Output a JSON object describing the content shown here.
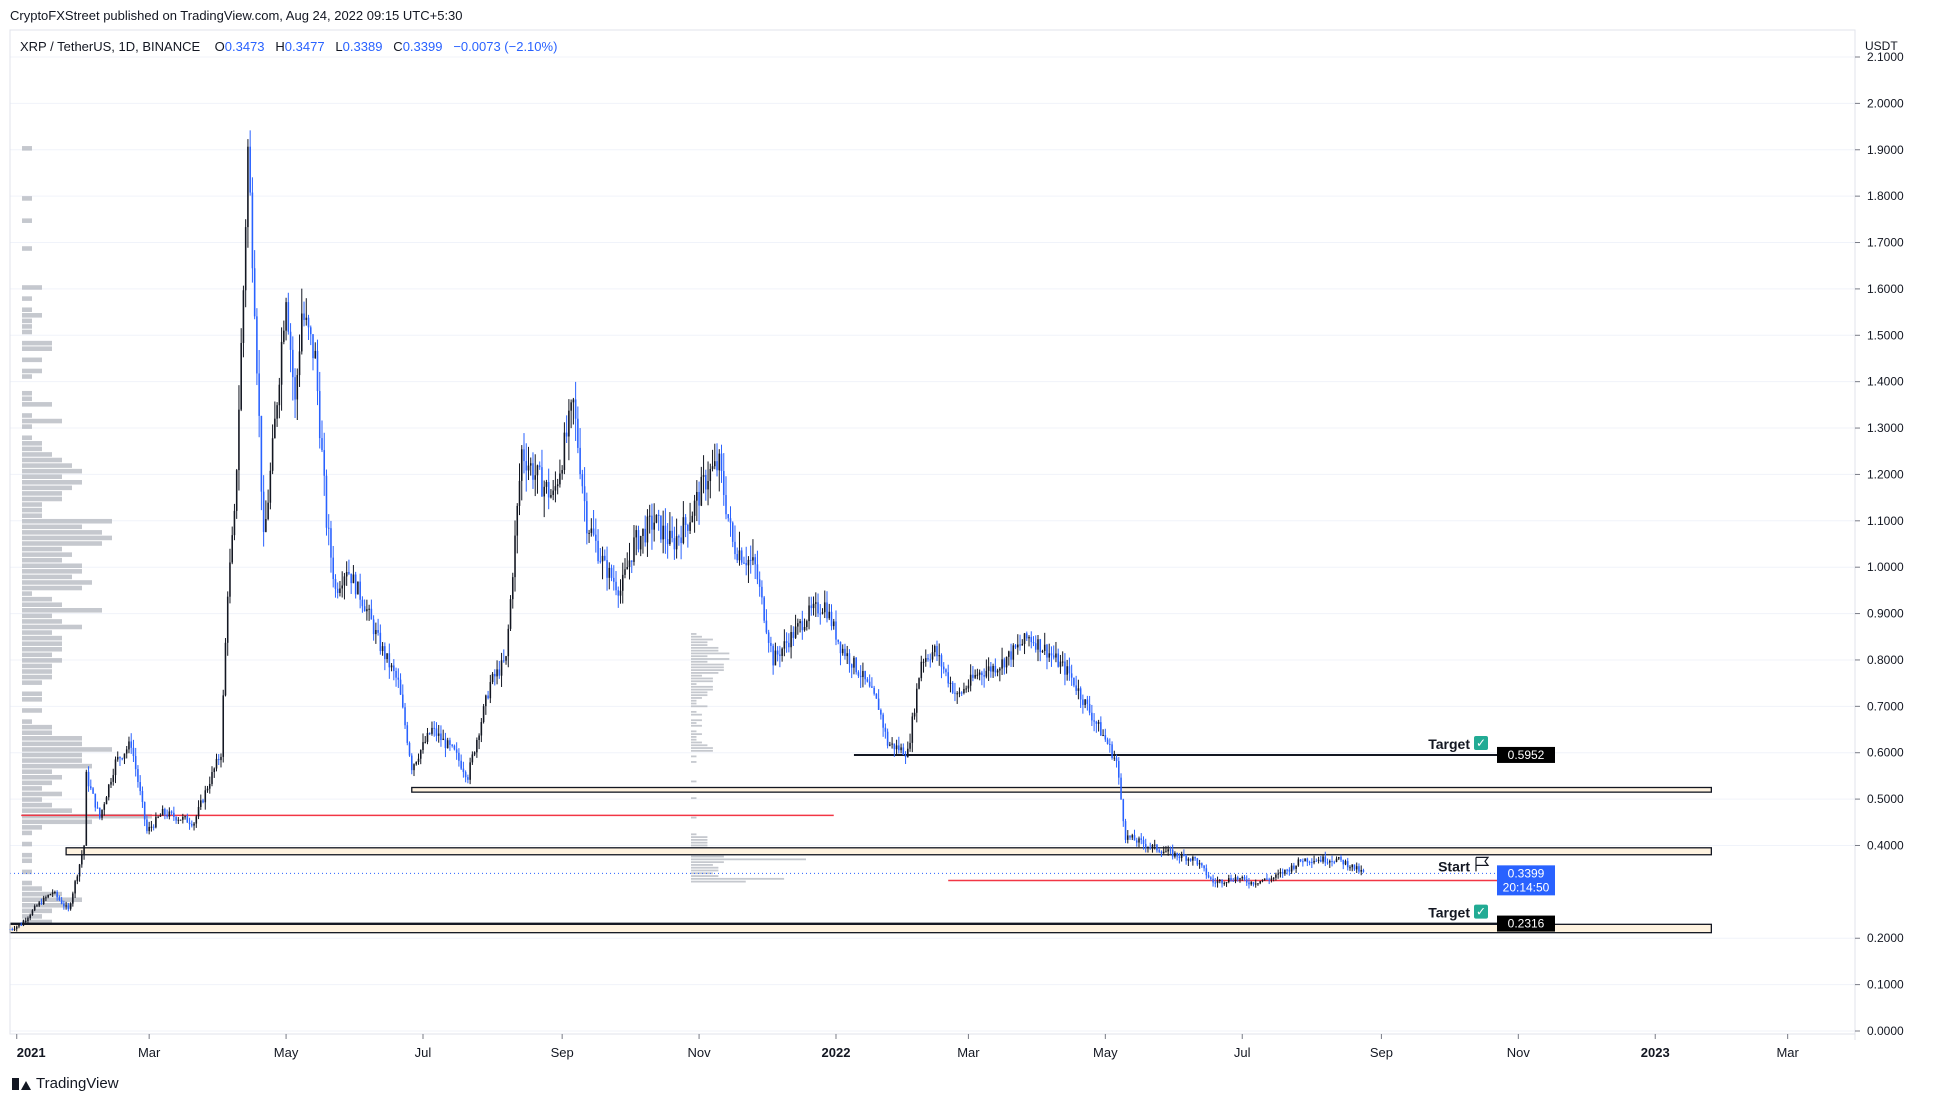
{
  "header": {
    "published_by": "CryptoFXStreet published on TradingView.com, Aug 24, 2022 09:15 UTC+5:30"
  },
  "symbol": {
    "name": "XRP / TetherUS, 1D, BINANCE",
    "open_label": "O",
    "open": "0.3473",
    "high_label": "H",
    "high": "0.3477",
    "low_label": "L",
    "low": "0.3389",
    "close_label": "C",
    "close": "0.3399",
    "change": "−0.0073 (−2.10%)"
  },
  "brand": {
    "label": "TradingView"
  },
  "chart_data": {
    "type": "candlestick",
    "price_axis_unit": "USDT",
    "ylim": [
      0.0,
      2.1
    ],
    "y_ticks": [
      "2.1000",
      "2.0000",
      "1.9000",
      "1.8000",
      "1.7000",
      "1.6000",
      "1.5000",
      "1.4000",
      "1.3000",
      "1.2000",
      "1.1000",
      "1.0000",
      "0.9000",
      "0.8000",
      "0.7000",
      "0.6000",
      "0.5000",
      "0.4000",
      "0.2000",
      "0.1000",
      "0.0000"
    ],
    "x_ticks": [
      "2021",
      "Mar",
      "May",
      "Jul",
      "Sep",
      "Nov",
      "2022",
      "Mar",
      "May",
      "Jul",
      "Sep",
      "Nov",
      "2023",
      "Mar"
    ],
    "x_tick_dates": [
      "2021-01-01",
      "2021-03-01",
      "2021-05-01",
      "2021-07-01",
      "2021-09-01",
      "2021-11-01",
      "2022-01-01",
      "2022-03-01",
      "2022-05-01",
      "2022-07-01",
      "2022-09-01",
      "2022-11-01",
      "2023-01-01",
      "2023-03-01"
    ],
    "x_range": [
      "2020-12-29",
      "2023-03-31"
    ],
    "price_path": [
      [
        "2020-12-29",
        0.22
      ],
      [
        "2021-01-03",
        0.23
      ],
      [
        "2021-01-10",
        0.27
      ],
      [
        "2021-01-17",
        0.3
      ],
      [
        "2021-01-24",
        0.26
      ],
      [
        "2021-01-31",
        0.4
      ],
      [
        "2021-02-01",
        0.55
      ],
      [
        "2021-02-07",
        0.46
      ],
      [
        "2021-02-14",
        0.58
      ],
      [
        "2021-02-21",
        0.62
      ],
      [
        "2021-02-28",
        0.43
      ],
      [
        "2021-03-07",
        0.47
      ],
      [
        "2021-03-14",
        0.46
      ],
      [
        "2021-03-21",
        0.45
      ],
      [
        "2021-03-28",
        0.54
      ],
      [
        "2021-04-02",
        0.6
      ],
      [
        "2021-04-05",
        0.95
      ],
      [
        "2021-04-08",
        1.1
      ],
      [
        "2021-04-12",
        1.6
      ],
      [
        "2021-04-14",
        1.9
      ],
      [
        "2021-04-17",
        1.58
      ],
      [
        "2021-04-21",
        1.05
      ],
      [
        "2021-04-25",
        1.25
      ],
      [
        "2021-05-01",
        1.6
      ],
      [
        "2021-05-05",
        1.35
      ],
      [
        "2021-05-08",
        1.55
      ],
      [
        "2021-05-14",
        1.45
      ],
      [
        "2021-05-19",
        1.1
      ],
      [
        "2021-05-23",
        0.95
      ],
      [
        "2021-05-28",
        1.0
      ],
      [
        "2021-06-05",
        0.92
      ],
      [
        "2021-06-12",
        0.83
      ],
      [
        "2021-06-20",
        0.75
      ],
      [
        "2021-06-26",
        0.57
      ],
      [
        "2021-07-05",
        0.65
      ],
      [
        "2021-07-15",
        0.6
      ],
      [
        "2021-07-21",
        0.55
      ],
      [
        "2021-07-31",
        0.75
      ],
      [
        "2021-08-07",
        0.8
      ],
      [
        "2021-08-14",
        1.25
      ],
      [
        "2021-08-20",
        1.2
      ],
      [
        "2021-08-28",
        1.15
      ],
      [
        "2021-09-06",
        1.35
      ],
      [
        "2021-09-12",
        1.1
      ],
      [
        "2021-09-20",
        1.0
      ],
      [
        "2021-09-27",
        0.95
      ],
      [
        "2021-10-03",
        1.05
      ],
      [
        "2021-10-12",
        1.1
      ],
      [
        "2021-10-20",
        1.05
      ],
      [
        "2021-10-27",
        1.1
      ],
      [
        "2021-11-05",
        1.2
      ],
      [
        "2021-11-10",
        1.22
      ],
      [
        "2021-11-16",
        1.05
      ],
      [
        "2021-11-26",
        1.0
      ],
      [
        "2021-12-04",
        0.8
      ],
      [
        "2021-12-12",
        0.85
      ],
      [
        "2021-12-20",
        0.9
      ],
      [
        "2021-12-27",
        0.92
      ],
      [
        "2022-01-03",
        0.83
      ],
      [
        "2022-01-12",
        0.77
      ],
      [
        "2022-01-20",
        0.7
      ],
      [
        "2022-01-24",
        0.62
      ],
      [
        "2022-02-02",
        0.6
      ],
      [
        "2022-02-08",
        0.8
      ],
      [
        "2022-02-14",
        0.82
      ],
      [
        "2022-02-24",
        0.72
      ],
      [
        "2022-03-05",
        0.77
      ],
      [
        "2022-03-15",
        0.79
      ],
      [
        "2022-03-28",
        0.85
      ],
      [
        "2022-04-05",
        0.82
      ],
      [
        "2022-04-15",
        0.77
      ],
      [
        "2022-04-25",
        0.68
      ],
      [
        "2022-05-02",
        0.62
      ],
      [
        "2022-05-06",
        0.58
      ],
      [
        "2022-05-10",
        0.42
      ],
      [
        "2022-05-20",
        0.4
      ],
      [
        "2022-06-01",
        0.38
      ],
      [
        "2022-06-10",
        0.37
      ],
      [
        "2022-06-18",
        0.32
      ],
      [
        "2022-06-28",
        0.33
      ],
      [
        "2022-07-05",
        0.32
      ],
      [
        "2022-07-15",
        0.33
      ],
      [
        "2022-07-22",
        0.35
      ],
      [
        "2022-07-28",
        0.37
      ],
      [
        "2022-08-05",
        0.37
      ],
      [
        "2022-08-12",
        0.37
      ],
      [
        "2022-08-17",
        0.36
      ],
      [
        "2022-08-24",
        0.34
      ]
    ],
    "horizontal_levels": [
      {
        "price": 0.5952,
        "kind": "black_line",
        "label": "Target",
        "label_mark": "✓",
        "axis_tag": "0.5952",
        "start": "2022-01-09"
      },
      {
        "price": 0.2316,
        "kind": "black_line",
        "label": "Target",
        "label_mark": "✓",
        "axis_tag": "0.2316",
        "start": "2020-12-29"
      },
      {
        "price": 0.3245,
        "kind": "red_line",
        "axis_tag": "0.3245",
        "start": "2022-02-20"
      },
      {
        "price": 0.465,
        "kind": "red_line",
        "start": "2021-01-03",
        "end": "2021-12-31"
      },
      {
        "price": 0.3399,
        "kind": "dotted_last_price"
      }
    ],
    "zones": [
      {
        "from": 0.515,
        "to": 0.525,
        "start": "2021-06-26",
        "end": "2023-01-26"
      },
      {
        "from": 0.38,
        "to": 0.395,
        "start": "2021-01-23",
        "end": "2023-01-26"
      },
      {
        "from": 0.212,
        "to": 0.23,
        "start": "2020-12-29",
        "end": "2023-01-26"
      }
    ],
    "start_marker": {
      "label": "Start",
      "price": 0.3399
    },
    "last_price": {
      "value": "0.3399",
      "countdown": "20:14:50"
    },
    "colors": {
      "bull": "#131722",
      "bear": "#2962ff",
      "red": "#f23645",
      "target_check": "#22ab94",
      "zone_fill": "#fff3e0"
    }
  }
}
